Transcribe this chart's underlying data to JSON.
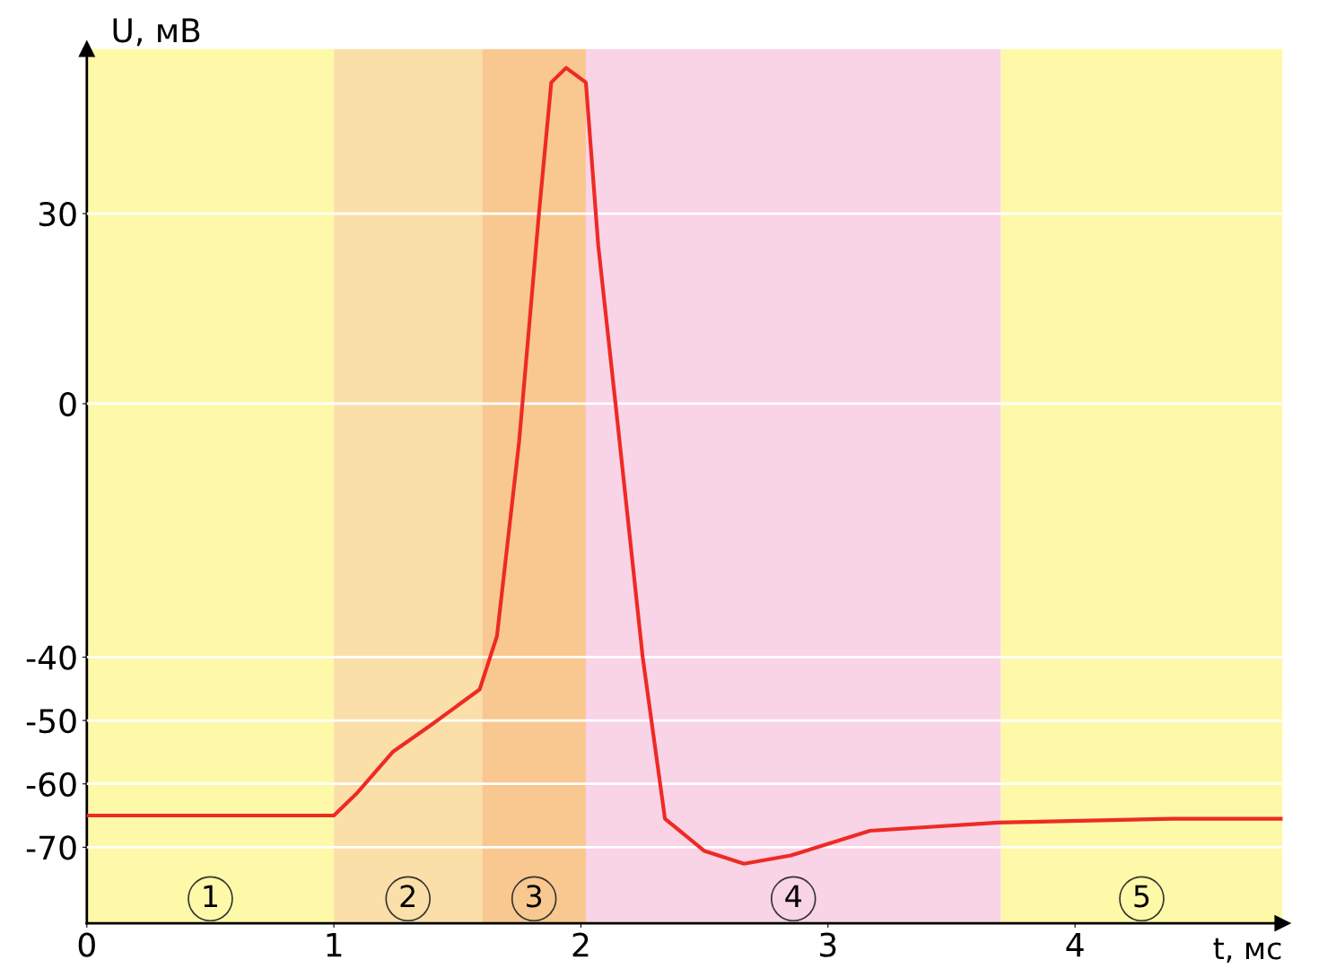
{
  "chart_data": {
    "type": "line",
    "xlabel": "t, мс",
    "ylabel": "U, мВ",
    "x": [
      0,
      1,
      1.09,
      1.24,
      1.39,
      1.59,
      1.66,
      1.75,
      1.83,
      1.88,
      1.94,
      2.02,
      2.07,
      2.14,
      2.25,
      2.34,
      2.5,
      2.66,
      2.85,
      3.17,
      3.69,
      4.39,
      4.84
    ],
    "series": [
      {
        "color": "#ee2a24",
        "values": [
          -65,
          -65,
          -61.6,
          -54.9,
          -50.8,
          -45.1,
          -36.7,
          -5.9,
          30,
          50.7,
          53,
          50.7,
          25,
          0,
          -40,
          -65.5,
          -70.6,
          -72.6,
          -71.3,
          -67.4,
          -66.1,
          -65.5,
          -65.5
        ]
      }
    ],
    "xlim": [
      0,
      4.84
    ],
    "ylim": [
      -82,
      56
    ],
    "xticks": [
      0,
      1,
      2,
      3,
      4
    ],
    "yticks": [
      -70,
      -60,
      -50,
      -40,
      0,
      30
    ],
    "grid": "y",
    "line_style": "solid",
    "marker": "none",
    "bands": [
      {
        "axis": "x",
        "from": 0,
        "to": 1,
        "label": "1",
        "color": "#fdf9a8"
      },
      {
        "axis": "x",
        "from": 1,
        "to": 1.6,
        "label": "2",
        "color": "#fbdfa8"
      },
      {
        "axis": "x",
        "from": 1.6,
        "to": 2.02,
        "label": "3",
        "color": "#f8c890"
      },
      {
        "axis": "x",
        "from": 2.02,
        "to": 3.7,
        "label": "4",
        "color": "#f9d3e6"
      },
      {
        "axis": "x",
        "from": 3.7,
        "to": 4.84,
        "label": "5",
        "color": "#fdf9a8"
      }
    ]
  }
}
